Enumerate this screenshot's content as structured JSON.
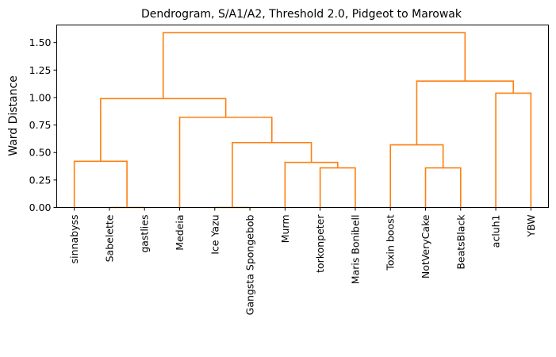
{
  "chart_data": {
    "type": "dendrogram",
    "title": "Dendrogram, S/A1/A2, Threshold 2.0, Pidgeot to Marowak",
    "xlabel": "",
    "ylabel": "Ward Distance",
    "ylim": [
      0,
      1.66
    ],
    "yticks": [
      "0.00",
      "0.25",
      "0.50",
      "0.75",
      "1.00",
      "1.25",
      "1.50"
    ],
    "grid": false,
    "line_color": "#ff7f0e",
    "leaves": [
      "sinnabyss",
      "Sabelette",
      "gastlies",
      "Medeia",
      "Ice Yazu",
      "Gangsta Spongebob",
      "Murm",
      "torkonpeter",
      "Maris Bonibell",
      "Toxin boost",
      "NotVeryCake",
      "BeatsBlack",
      "acluh1",
      "YBW"
    ],
    "merges": [
      {
        "left": "Sabelette",
        "right": "gastlies",
        "height": 0.0
      },
      {
        "left": "Ice Yazu",
        "right": "Gangsta Spongebob",
        "height": 0.0
      },
      {
        "left": "torkonpeter",
        "right": "Maris Bonibell",
        "height": 0.36
      },
      {
        "left": "NotVeryCake",
        "right": "BeatsBlack",
        "height": 0.36
      },
      {
        "left": "Murm",
        "right": "torkonpeter + Maris Bonibell",
        "height": 0.41
      },
      {
        "left": "sinnabyss",
        "right": "Sabelette + gastlies",
        "height": 0.42
      },
      {
        "left": "Toxin boost",
        "right": "NotVeryCake + BeatsBlack",
        "height": 0.57
      },
      {
        "left": "Ice Yazu + Gangsta Spongebob",
        "right": "Murm + torkonpeter + Maris Bonibell",
        "height": 0.59
      },
      {
        "left": "Medeia",
        "right": "Ice Yazu ... Maris Bonibell",
        "height": 0.82
      },
      {
        "left": "sinnabyss + Sabelette + gastlies",
        "right": "Medeia ... Maris Bonibell",
        "height": 0.99
      },
      {
        "left": "acluh1",
        "right": "YBW",
        "height": 1.04
      },
      {
        "left": "Toxin boost + NotVeryCake + BeatsBlack",
        "right": "acluh1 + YBW",
        "height": 1.15
      },
      {
        "left": "sinnabyss ... Maris Bonibell",
        "right": "Toxin boost ... YBW",
        "height": 1.59
      }
    ]
  }
}
